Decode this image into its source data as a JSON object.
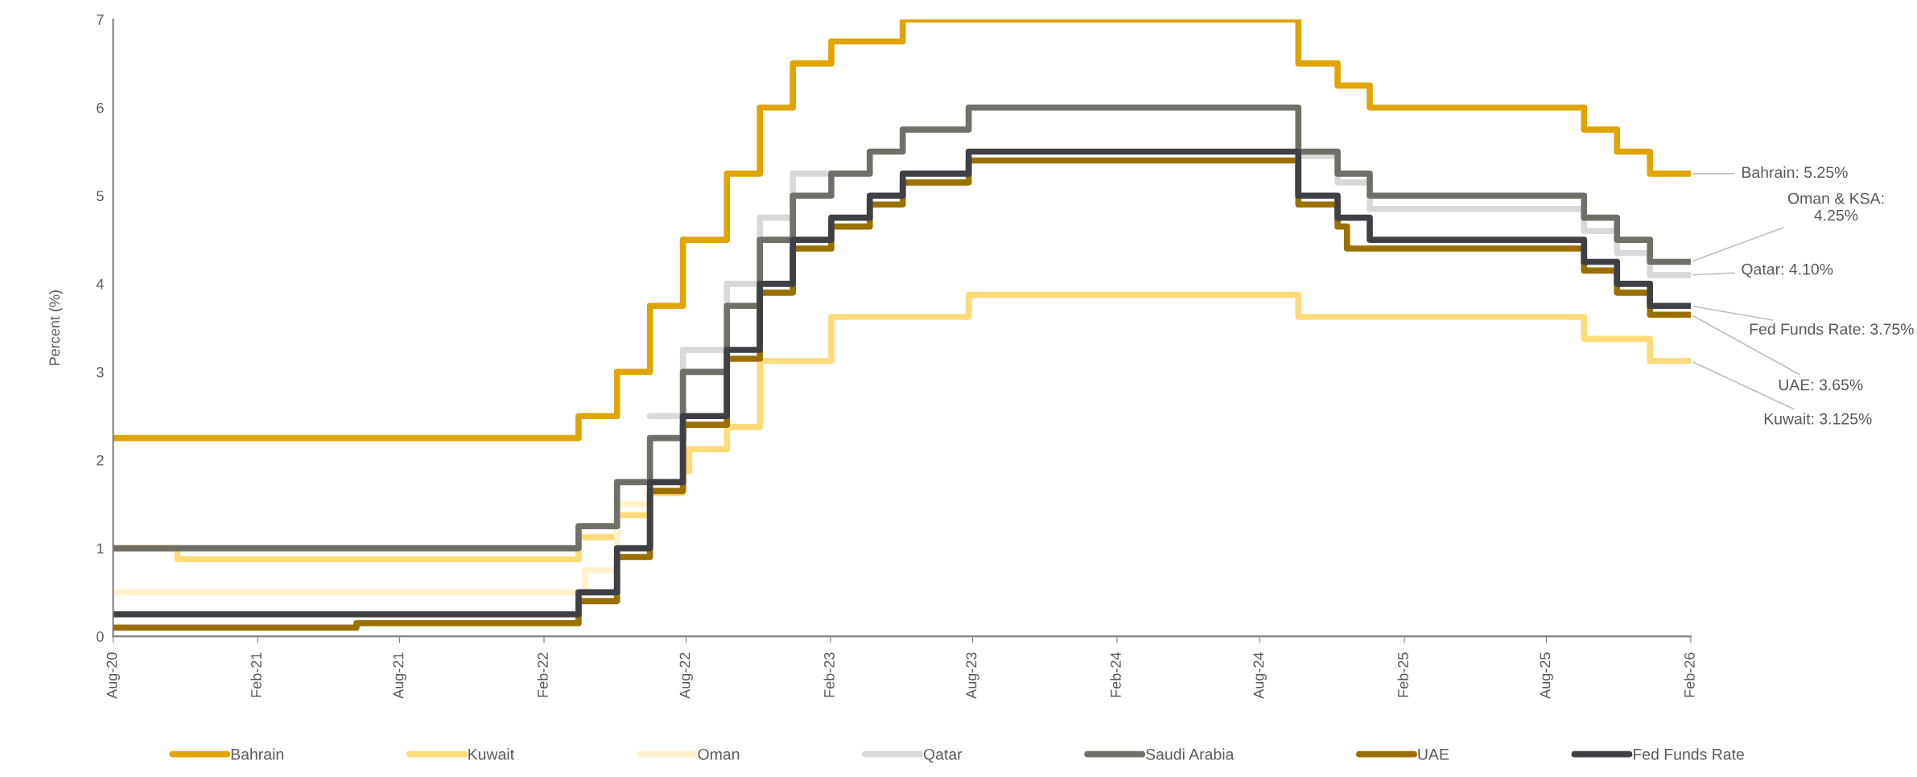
{
  "chart_data": {
    "type": "step",
    "ylabel": "Percent (%)",
    "xlim": [
      "2020-08-01",
      "2026-02-01"
    ],
    "ylim": [
      0,
      7
    ],
    "yticks": [
      0,
      1,
      2,
      3,
      4,
      5,
      6,
      7
    ],
    "xticks": [
      {
        "value": "2020-08-01",
        "label": "Aug-20"
      },
      {
        "value": "2021-02-01",
        "label": "Feb-21"
      },
      {
        "value": "2021-08-01",
        "label": "Aug-21"
      },
      {
        "value": "2022-02-01",
        "label": "Feb-22"
      },
      {
        "value": "2022-08-01",
        "label": "Aug-22"
      },
      {
        "value": "2023-02-01",
        "label": "Feb-23"
      },
      {
        "value": "2023-08-01",
        "label": "Aug-23"
      },
      {
        "value": "2024-02-01",
        "label": "Feb-24"
      },
      {
        "value": "2024-08-01",
        "label": "Aug-24"
      },
      {
        "value": "2025-02-01",
        "label": "Feb-25"
      },
      {
        "value": "2025-08-01",
        "label": "Aug-25"
      },
      {
        "value": "2026-02-01",
        "label": "Feb-26"
      }
    ],
    "grid": false,
    "legend": "bottom",
    "line_style": "solid",
    "marker": "none",
    "series": [
      {
        "name": "Bahrain",
        "color": "#e0a500",
        "x": [
          "2020-08-01",
          "2022-03-17",
          "2022-05-05",
          "2022-06-16",
          "2022-07-28",
          "2022-09-22",
          "2022-11-03",
          "2022-12-15",
          "2023-02-02",
          "2023-05-04",
          "2024-09-19",
          "2024-11-08",
          "2024-12-19",
          "2025-09-18",
          "2025-10-30",
          "2025-12-11",
          "2026-02-01"
        ],
        "values": [
          2.25,
          2.5,
          3.0,
          3.75,
          4.5,
          5.25,
          6.0,
          6.5,
          6.75,
          7.0,
          6.5,
          6.25,
          6.0,
          5.75,
          5.5,
          5.25,
          5.25
        ]
      },
      {
        "name": "Kuwait",
        "color": "#ffdb7a",
        "x": [
          "2020-08-01",
          "2020-10-22",
          "2022-03-17",
          "2022-05-05",
          "2022-06-16",
          "2022-07-28",
          "2022-08-05",
          "2022-09-22",
          "2022-11-03",
          "2023-02-02",
          "2023-07-27",
          "2024-09-19",
          "2025-09-18",
          "2025-12-11",
          "2026-02-01"
        ],
        "values": [
          1.0,
          0.875,
          1.125,
          1.375,
          1.625,
          1.875,
          2.125,
          2.375,
          3.125,
          3.625,
          3.875,
          3.625,
          3.375,
          3.125,
          3.125
        ]
      },
      {
        "name": "Oman",
        "color": "#fff2cc",
        "x": [
          "2020-08-01",
          "2022-03-25",
          "2022-05-05",
          "2022-06-16"
        ],
        "values": [
          0.5,
          0.75,
          1.5,
          1.5
        ]
      },
      {
        "name": "Qatar",
        "color": "#d9d9d9",
        "x": [
          "2022-06-16",
          "2022-07-28",
          "2022-09-22",
          "2022-11-03",
          "2022-12-15",
          "2023-02-02",
          "2024-09-19",
          "2024-11-08",
          "2024-12-19",
          "2025-09-18",
          "2025-10-30",
          "2025-12-11",
          "2026-02-01"
        ],
        "values": [
          2.5,
          3.25,
          4.0,
          4.75,
          5.25,
          null,
          5.45,
          5.15,
          4.85,
          4.6,
          4.35,
          4.1,
          4.1
        ]
      },
      {
        "name": "Saudi Arabia",
        "color": "#707068",
        "x": [
          "2020-08-01",
          "2022-03-17",
          "2022-05-05",
          "2022-06-16",
          "2022-07-28",
          "2022-09-22",
          "2022-11-03",
          "2022-12-15",
          "2023-02-02",
          "2023-03-23",
          "2023-05-04",
          "2023-07-27",
          "2024-09-19",
          "2024-11-08",
          "2024-12-19",
          "2025-09-18",
          "2025-10-30",
          "2025-12-11",
          "2026-02-01"
        ],
        "values": [
          1.0,
          1.25,
          1.75,
          2.25,
          3.0,
          3.75,
          4.5,
          5.0,
          5.25,
          5.5,
          5.75,
          6.0,
          5.5,
          5.25,
          5.0,
          4.75,
          4.5,
          4.25,
          4.25
        ]
      },
      {
        "name": "UAE",
        "color": "#9a7000",
        "x": [
          "2020-08-01",
          "2021-06-07",
          "2022-03-17",
          "2022-05-05",
          "2022-06-16",
          "2022-07-28",
          "2022-09-22",
          "2022-11-03",
          "2022-12-15",
          "2023-02-02",
          "2023-03-23",
          "2023-05-04",
          "2023-07-27",
          "2024-09-19",
          "2024-11-08",
          "2024-11-20",
          "2025-09-18",
          "2025-10-30",
          "2025-12-11",
          "2026-02-01"
        ],
        "values": [
          0.1,
          0.15,
          0.4,
          0.9,
          1.65,
          2.4,
          3.15,
          3.9,
          4.4,
          4.65,
          4.9,
          5.15,
          5.4,
          4.9,
          4.65,
          4.4,
          4.15,
          3.9,
          3.65,
          3.65
        ]
      },
      {
        "name": "Fed Funds Rate",
        "color": "#3f4045",
        "x": [
          "2020-08-01",
          "2022-03-17",
          "2022-05-05",
          "2022-06-16",
          "2022-07-28",
          "2022-09-22",
          "2022-11-03",
          "2022-12-15",
          "2023-02-02",
          "2023-03-23",
          "2023-05-04",
          "2023-07-27",
          "2024-09-19",
          "2024-11-08",
          "2024-12-19",
          "2025-09-18",
          "2025-10-30",
          "2025-12-11",
          "2026-02-01"
        ],
        "values": [
          0.25,
          0.5,
          1.0,
          1.75,
          2.5,
          3.25,
          4.0,
          4.5,
          4.75,
          5.0,
          5.25,
          5.5,
          5.0,
          4.75,
          4.5,
          4.25,
          4.0,
          3.75,
          3.75
        ]
      }
    ],
    "annotations": [
      {
        "text": "Bahrain: 5.25%",
        "x": "2026-02-01",
        "y": 5.25
      },
      {
        "text": "Oman & KSA:\n4.25%",
        "x": "2026-02-01",
        "y": 4.25
      },
      {
        "text": "Qatar: 4.10%",
        "x": "2026-02-01",
        "y": 4.1
      },
      {
        "text": "Fed Funds Rate: 3.75%",
        "x": "2026-02-01",
        "y": 3.75
      },
      {
        "text": "UAE: 3.65%",
        "x": "2026-02-01",
        "y": 3.65
      },
      {
        "text": "Kuwait: 3.125%",
        "x": "2026-02-01",
        "y": 3.125
      }
    ]
  }
}
